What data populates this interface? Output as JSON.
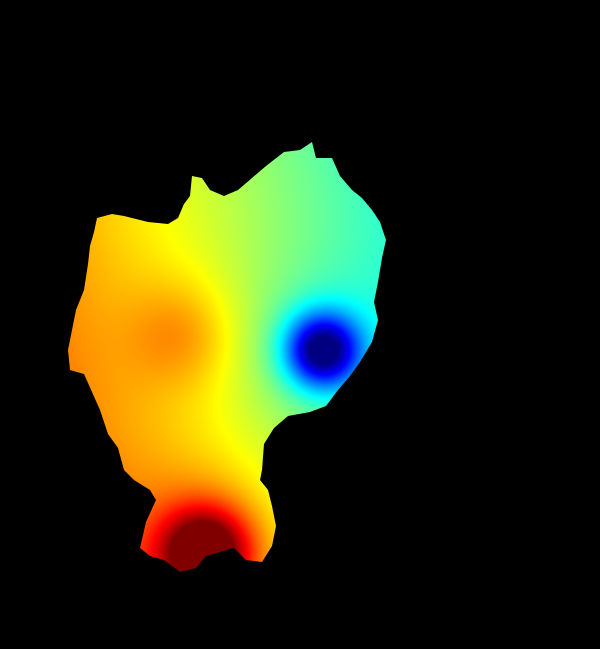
{
  "map": {
    "background_color": "#000000",
    "colormap": "jet",
    "colormap_stops": [
      "#0000FF",
      "#0080FF",
      "#00FFFF",
      "#00FF80",
      "#00FF00",
      "#80FF00",
      "#FFFF00",
      "#FF8000",
      "#FF0000"
    ],
    "features": [
      {
        "kind": "low-value-hotspot",
        "color": "#0000FF"
      },
      {
        "kind": "mid-value-peak",
        "color": "#FFFF00"
      },
      {
        "kind": "high-value-hotspot",
        "color": "#FF0000"
      }
    ]
  }
}
